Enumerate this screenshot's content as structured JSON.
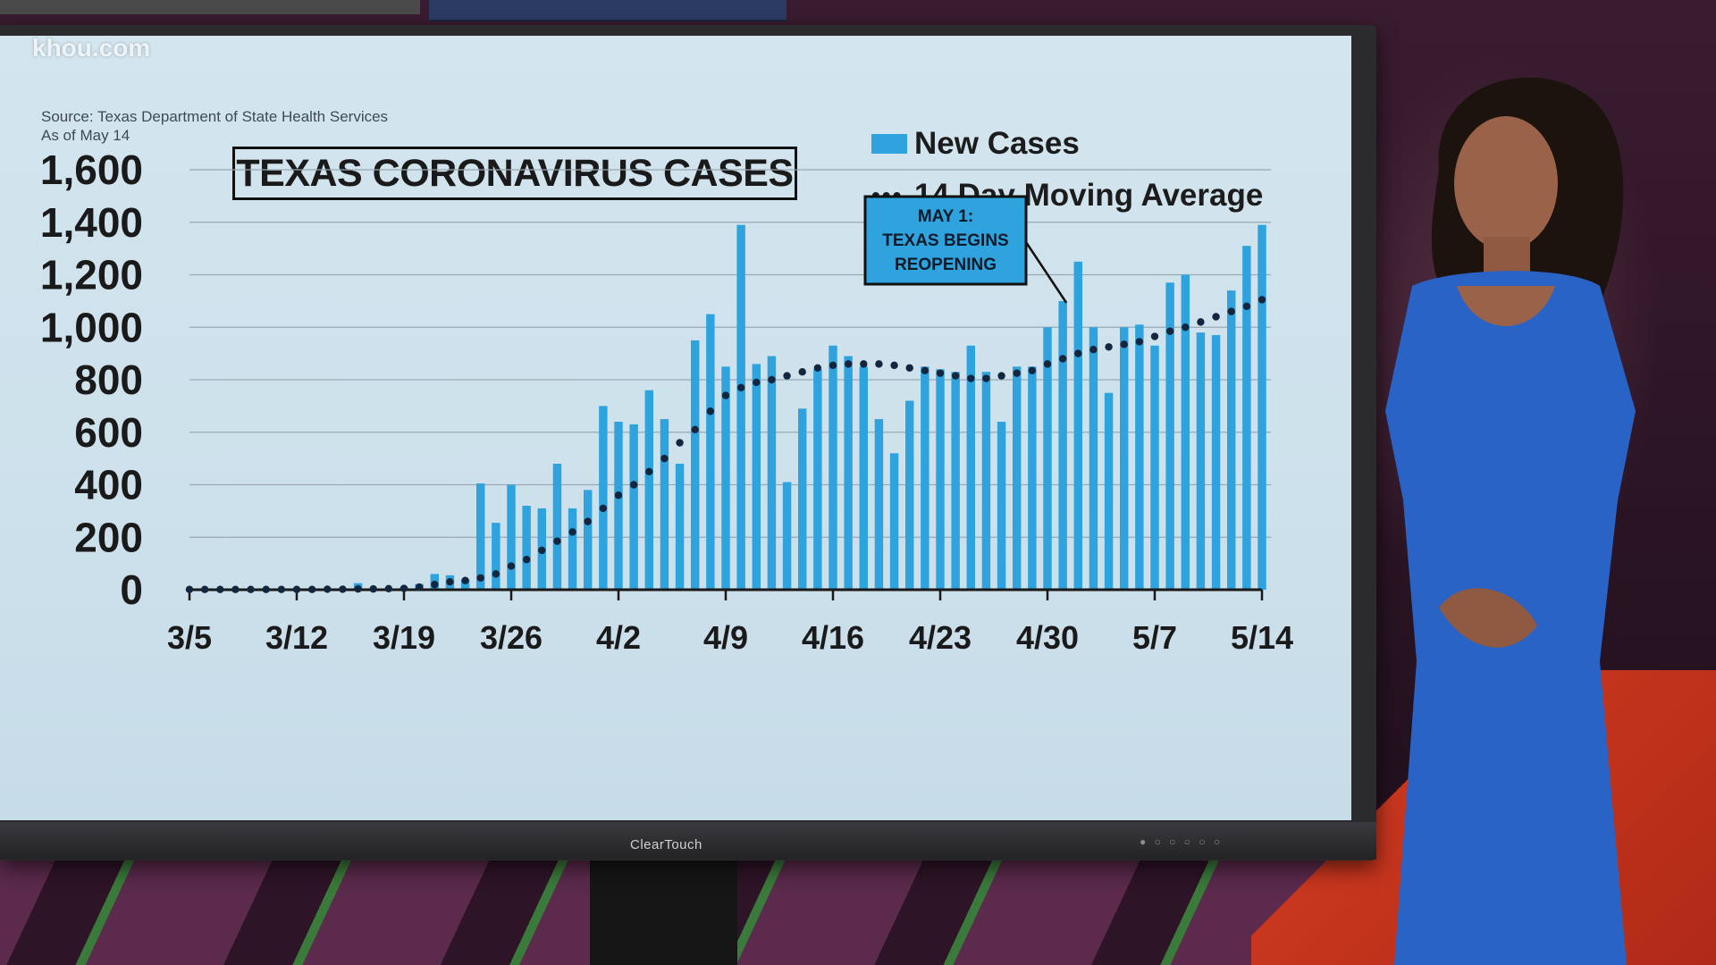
{
  "watermark": "khou.com",
  "source_line1": "Source: Texas Department of State Health Services",
  "source_line2": "As of May 14",
  "device_brand": "ClearTouch",
  "colors": {
    "bar": "#2ea3dd",
    "average_dots": "#12263f",
    "screen_bg": "#cfe2ec",
    "dress": "#2a63c6"
  },
  "chart_data": {
    "type": "bar",
    "title": "TEXAS CORONAVIRUS CASES",
    "xlabel": "",
    "ylabel": "",
    "ylim": [
      0,
      1600
    ],
    "yticks": [
      "0",
      "200",
      "400",
      "600",
      "800",
      "1,000",
      "1,200",
      "1,400",
      "1,600"
    ],
    "ytick_values": [
      0,
      200,
      400,
      600,
      800,
      1000,
      1200,
      1400,
      1600
    ],
    "xticks": [
      "3/5",
      "3/12",
      "3/19",
      "3/26",
      "4/2",
      "4/9",
      "4/16",
      "4/23",
      "4/30",
      "5/7",
      "5/14"
    ],
    "grid": true,
    "legend_position": "top-right",
    "annotation": {
      "date": "5/1",
      "lines": [
        "MAY 1:",
        "TEXAS BEGINS",
        "REOPENING"
      ]
    },
    "series": [
      {
        "name": "New Cases",
        "type": "bar",
        "dates": [
          "3/5",
          "3/6",
          "3/7",
          "3/8",
          "3/9",
          "3/10",
          "3/11",
          "3/12",
          "3/13",
          "3/14",
          "3/15",
          "3/16",
          "3/17",
          "3/18",
          "3/19",
          "3/20",
          "3/21",
          "3/22",
          "3/23",
          "3/24",
          "3/25",
          "3/26",
          "3/27",
          "3/28",
          "3/29",
          "3/30",
          "3/31",
          "4/1",
          "4/2",
          "4/3",
          "4/4",
          "4/5",
          "4/6",
          "4/7",
          "4/8",
          "4/9",
          "4/10",
          "4/11",
          "4/12",
          "4/13",
          "4/14",
          "4/15",
          "4/16",
          "4/17",
          "4/18",
          "4/19",
          "4/20",
          "4/21",
          "4/22",
          "4/23",
          "4/24",
          "4/25",
          "4/26",
          "4/27",
          "4/28",
          "4/29",
          "4/30",
          "5/1",
          "5/2",
          "5/3",
          "5/4",
          "5/5",
          "5/6",
          "5/7",
          "5/8",
          "5/9",
          "5/10",
          "5/11",
          "5/12",
          "5/13",
          "5/14"
        ],
        "values": [
          1,
          0,
          2,
          1,
          2,
          3,
          1,
          2,
          0,
          2,
          4,
          25,
          1,
          3,
          8,
          22,
          60,
          55,
          40,
          405,
          255,
          400,
          320,
          310,
          480,
          310,
          380,
          700,
          640,
          630,
          760,
          650,
          480,
          950,
          1050,
          850,
          1390,
          860,
          890,
          410,
          690,
          840,
          930,
          890,
          850,
          650,
          520,
          720,
          850,
          840,
          830,
          930,
          830,
          640,
          850,
          850,
          1000,
          1100,
          1250,
          1000,
          750,
          1000,
          1010,
          930,
          1170,
          1200,
          980,
          970,
          1140,
          1310,
          1390
        ]
      },
      {
        "name": "14 Day Moving Average",
        "type": "dotted-line",
        "values": [
          1,
          1,
          1,
          1,
          1,
          1,
          1,
          1,
          1,
          2,
          2,
          3,
          3,
          4,
          5,
          10,
          20,
          30,
          35,
          45,
          60,
          90,
          115,
          150,
          185,
          220,
          260,
          310,
          360,
          400,
          450,
          500,
          560,
          610,
          680,
          740,
          770,
          790,
          800,
          815,
          830,
          845,
          855,
          860,
          860,
          860,
          855,
          845,
          835,
          825,
          815,
          805,
          805,
          815,
          825,
          835,
          860,
          880,
          900,
          915,
          925,
          935,
          945,
          965,
          985,
          1000,
          1020,
          1040,
          1060,
          1080,
          1105
        ]
      }
    ]
  }
}
